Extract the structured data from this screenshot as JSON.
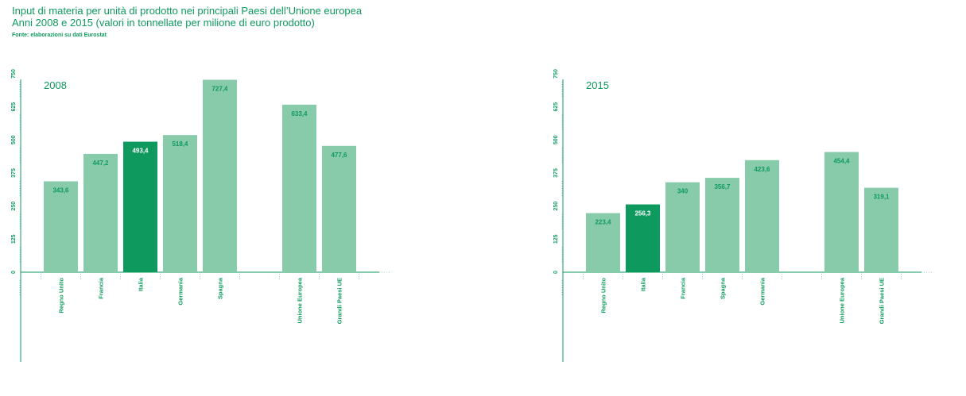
{
  "header": {
    "title_line1": "Input di materia per unità di prodotto nei principali Paesi dell’Unione europea",
    "title_line2": "Anni 2008 e 2015 (valori in tonnellate per milione di euro prodotto)",
    "source": "Fonte: elaborazioni su dati Eurostat"
  },
  "colors": {
    "bar": "#88cbab",
    "highlight": "#0e9a5e",
    "axis": "#0e9a5e"
  },
  "chart_data": [
    {
      "type": "bar",
      "title": "2008",
      "categories": [
        "Regno Unito",
        "Francia",
        "Italia",
        "Germania",
        "Spagna",
        "",
        "Unione Europea",
        "Grandi Paesi UE"
      ],
      "values": [
        343.6,
        447.2,
        493.4,
        518.4,
        727.4,
        null,
        633.4,
        477.6
      ],
      "labels": [
        "343,6",
        "447,2",
        "493,4",
        "518,4",
        "727,4",
        "",
        "633,4",
        "477,6"
      ],
      "highlight": "Italia",
      "yticks": [
        "0",
        "125",
        "250",
        "375",
        "500",
        "625",
        "750"
      ],
      "ylim": [
        0,
        750
      ]
    },
    {
      "type": "bar",
      "title": "2015",
      "categories": [
        "Regno Unito",
        "Italia",
        "Francia",
        "Spagna",
        "Germania",
        "",
        "Unione Europea",
        "Grandi Paesi UE"
      ],
      "values": [
        223.4,
        256.3,
        340,
        356.7,
        423.6,
        null,
        454.4,
        319.1
      ],
      "labels": [
        "223,4",
        "256,3",
        "340",
        "356,7",
        "423,6",
        "",
        "454,4",
        "319,1"
      ],
      "highlight": "Italia",
      "yticks": [
        "0",
        "125",
        "250",
        "375",
        "500",
        "625",
        "750"
      ],
      "ylim": [
        0,
        750
      ]
    }
  ]
}
